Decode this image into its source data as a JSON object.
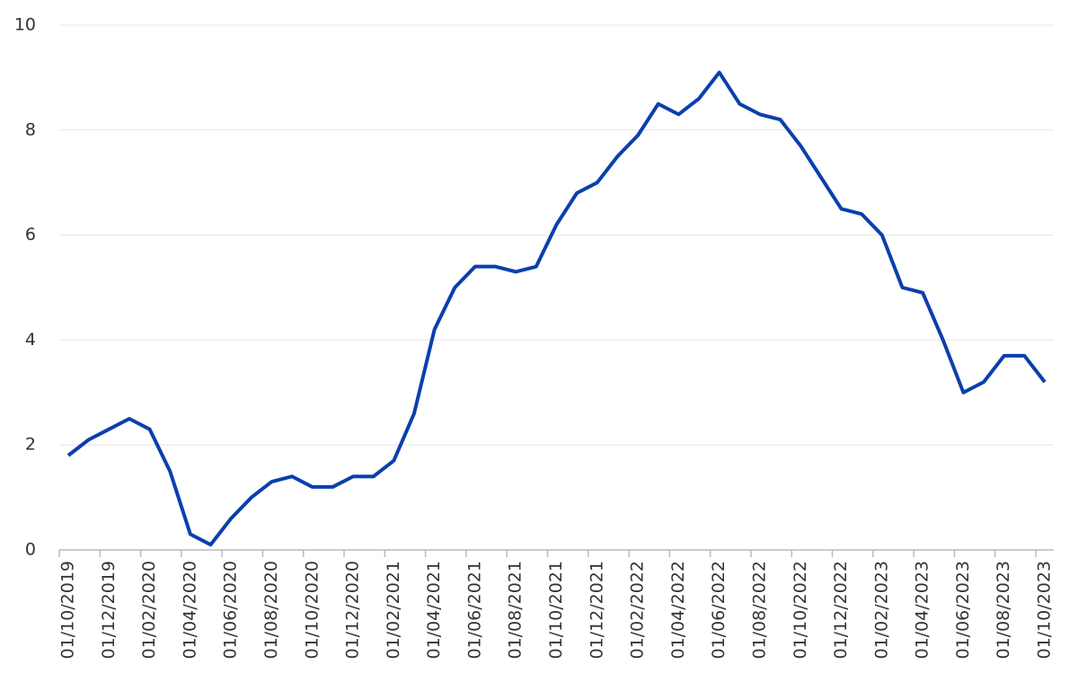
{
  "chart_data": {
    "type": "line",
    "categories": [
      "01/10/2019",
      null,
      "01/12/2019",
      null,
      "01/02/2020",
      null,
      "01/04/2020",
      null,
      "01/06/2020",
      null,
      "01/08/2020",
      null,
      "01/10/2020",
      null,
      "01/12/2020",
      null,
      "01/02/2021",
      null,
      "01/04/2021",
      null,
      "01/06/2021",
      null,
      "01/08/2021",
      null,
      "01/10/2021",
      null,
      "01/12/2021",
      null,
      "01/02/2022",
      null,
      "01/04/2022",
      null,
      "01/06/2022",
      null,
      "01/08/2022",
      null,
      "01/10/2022",
      null,
      "01/12/2022",
      null,
      "01/02/2023",
      null,
      "01/04/2023",
      null,
      "01/06/2023",
      null,
      "01/08/2023",
      null,
      "01/10/2023"
    ],
    "values": [
      1.8,
      2.1,
      2.3,
      2.5,
      2.3,
      1.5,
      0.3,
      0.1,
      0.6,
      1.0,
      1.3,
      1.4,
      1.2,
      1.2,
      1.4,
      1.4,
      1.7,
      2.6,
      4.2,
      5.0,
      5.4,
      5.4,
      5.3,
      5.4,
      6.2,
      6.8,
      7.0,
      7.5,
      7.9,
      8.5,
      8.3,
      8.6,
      9.1,
      8.5,
      8.3,
      8.2,
      7.7,
      7.1,
      6.5,
      6.4,
      6.0,
      5.0,
      4.9,
      4.0,
      3.0,
      3.2,
      3.7,
      3.7,
      3.2
    ],
    "color": "#0a3fad",
    "ylim": [
      0,
      10
    ],
    "yticks": [
      0,
      2,
      4,
      6,
      8,
      10
    ],
    "grid": true
  }
}
